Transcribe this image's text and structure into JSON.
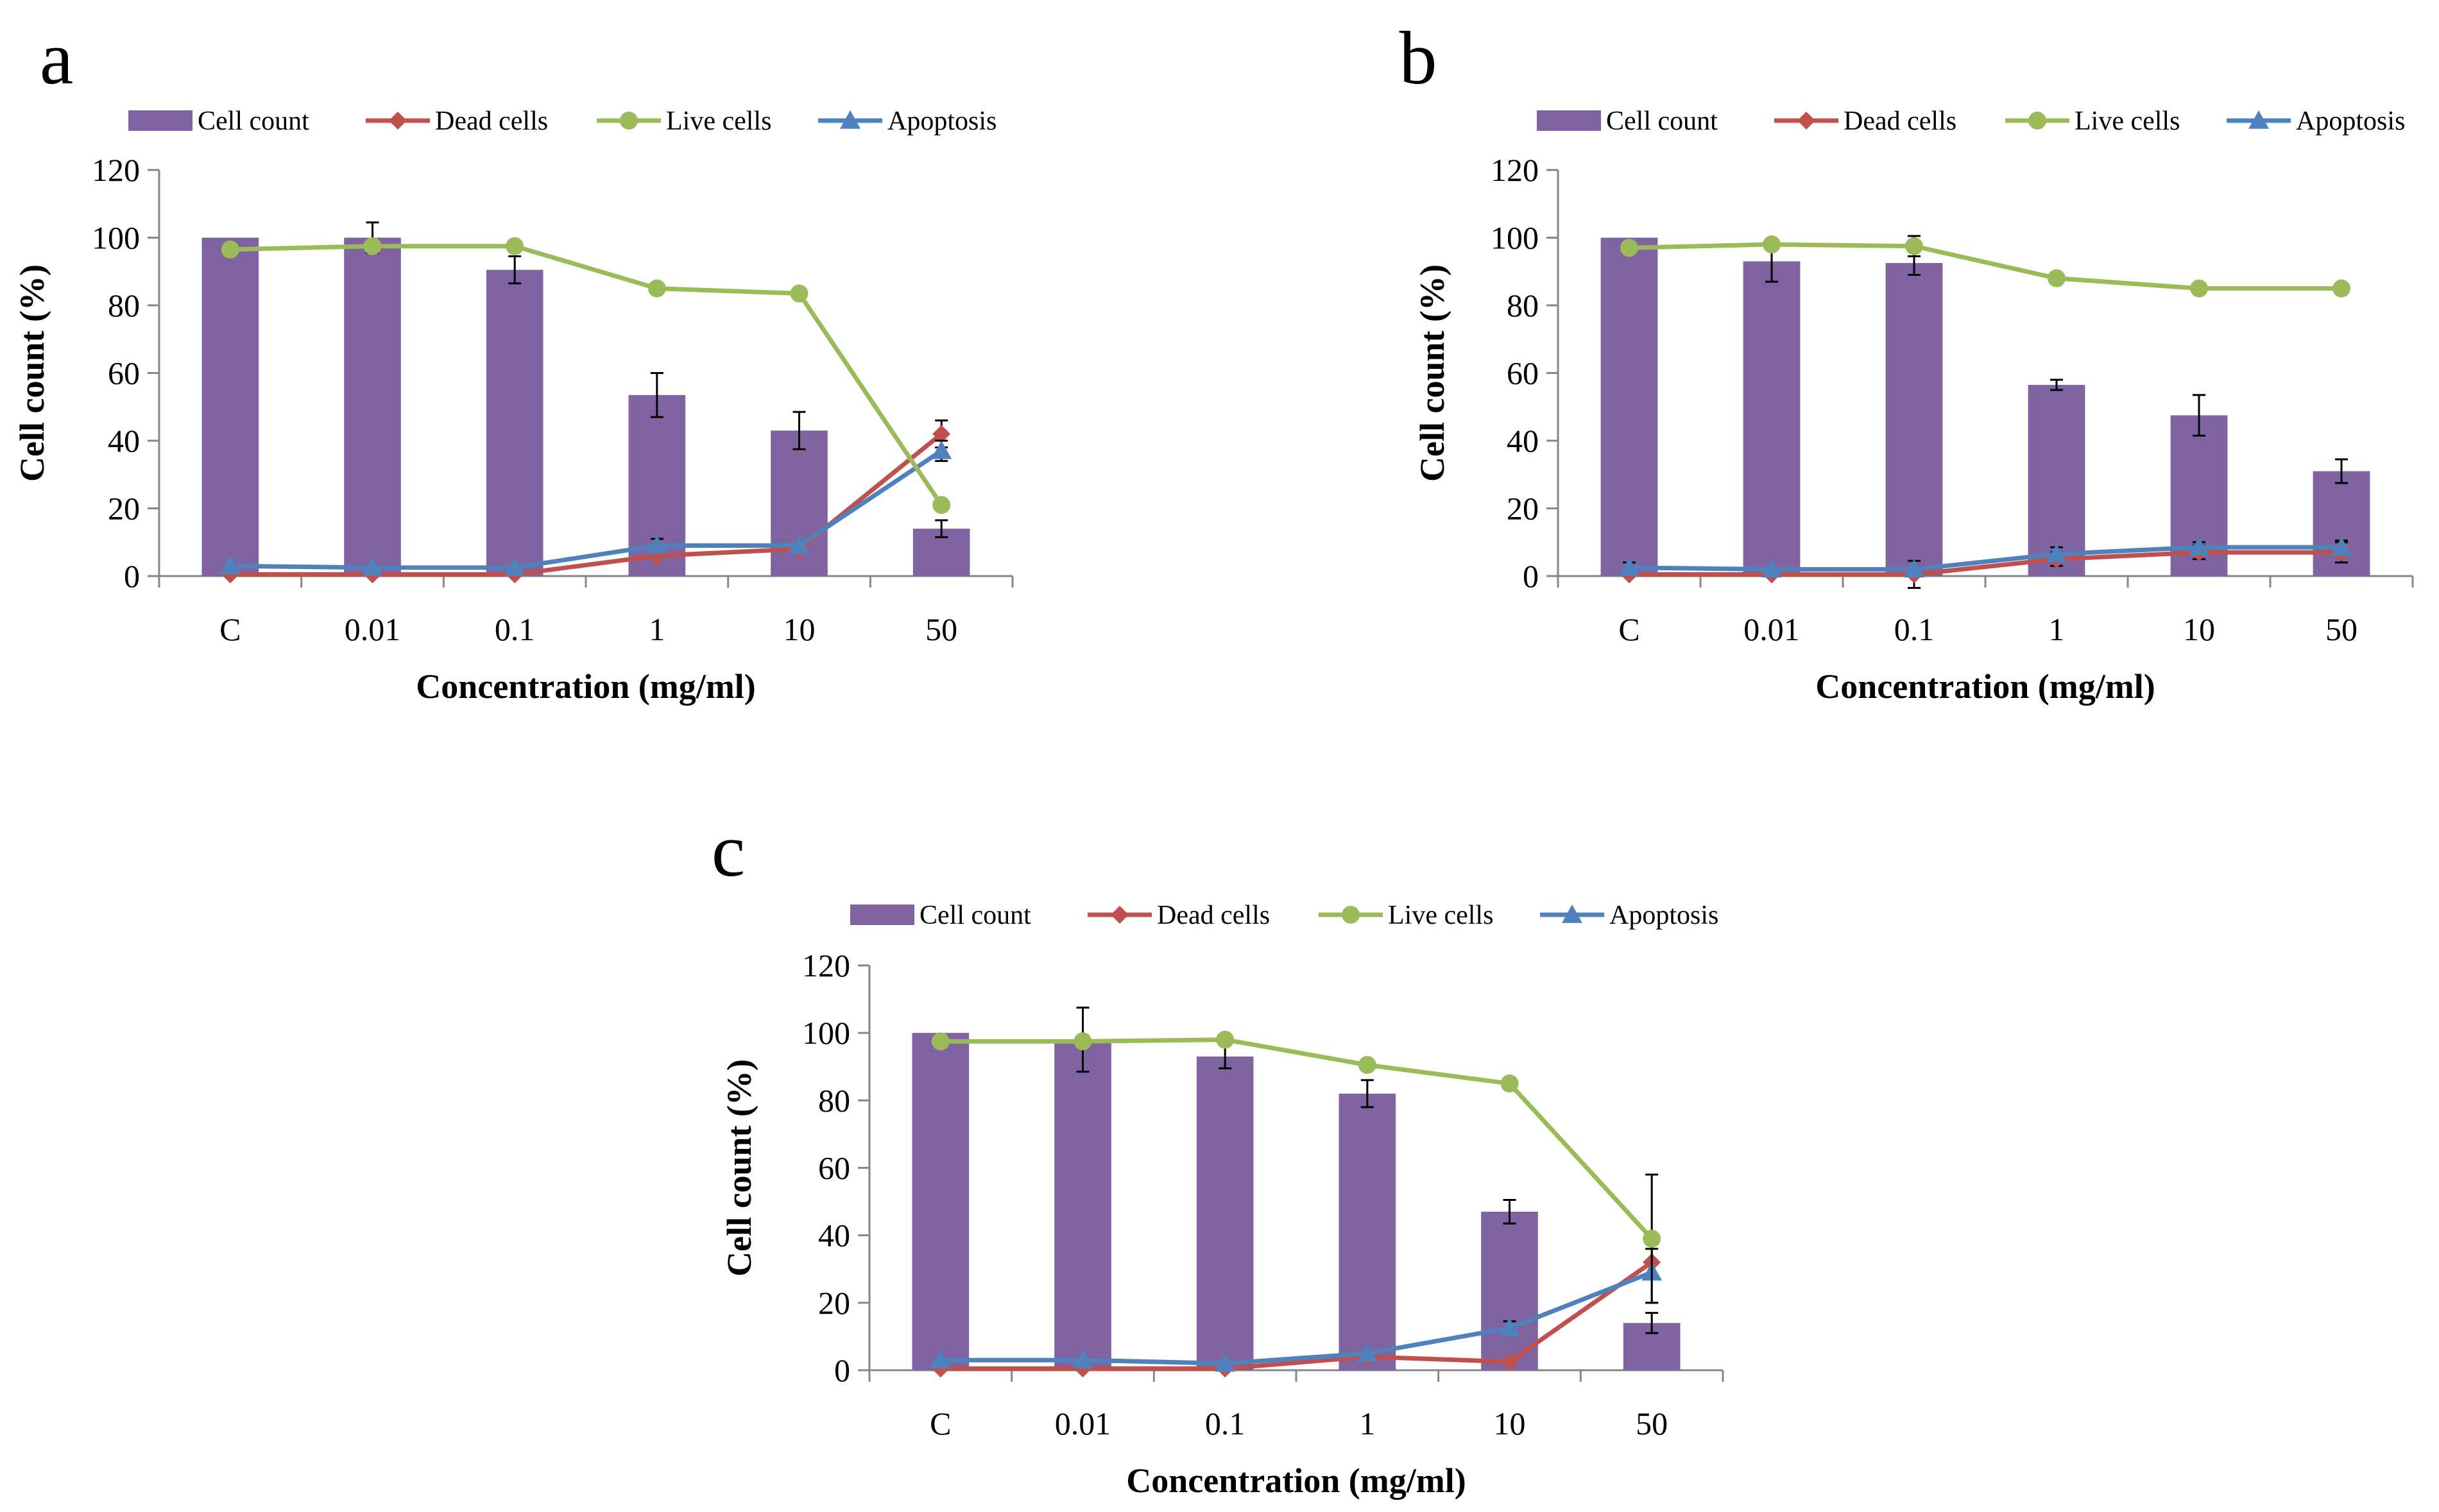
{
  "colors": {
    "cell_count": "#8064A2",
    "dead_cells": "#C0504D",
    "live_cells": "#9BBB59",
    "apoptosis": "#4F81BD",
    "axis": "#868686",
    "text": "#000000"
  },
  "chart_data": [
    {
      "panel": "a",
      "type": "bar",
      "ylabel": "Cell count (%)",
      "xlabel": "Concentration (mg/ml)",
      "ylim": [
        0,
        120
      ],
      "yticks": [
        "0",
        "20",
        "40",
        "60",
        "80",
        "100",
        "120"
      ],
      "categories": [
        "C",
        "0.01",
        "0.1",
        "1",
        "10",
        "50"
      ],
      "legend": [
        "Cell count",
        "Dead cells",
        "Live cells",
        "Apoptosis"
      ],
      "series": [
        {
          "name": "Cell count",
          "type": "bar",
          "values": [
            100,
            100,
            90.5,
            53.5,
            43,
            14
          ],
          "errors": [
            0.3,
            4.5,
            4,
            6.5,
            5.5,
            2.5
          ]
        },
        {
          "name": "Dead cells",
          "type": "line",
          "marker": "diamond",
          "values": [
            0.5,
            0.5,
            0.5,
            6,
            8,
            42
          ],
          "errors": [
            0,
            0,
            0,
            0,
            0,
            4
          ]
        },
        {
          "name": "Live cells",
          "type": "line",
          "marker": "circle",
          "values": [
            96.5,
            97.5,
            97.5,
            85,
            83.5,
            21
          ],
          "errors": [
            0,
            0,
            0,
            1,
            1,
            0
          ]
        },
        {
          "name": "Apoptosis",
          "type": "line",
          "marker": "triangle",
          "values": [
            3,
            2.5,
            2.5,
            9,
            9,
            37
          ],
          "errors": [
            0,
            0,
            0,
            2,
            0,
            3
          ]
        }
      ]
    },
    {
      "panel": "b",
      "type": "bar",
      "ylabel": "Cell count (%)",
      "xlabel": "Concentration (mg/ml)",
      "ylim": [
        0,
        120
      ],
      "yticks": [
        "0",
        "20",
        "40",
        "60",
        "80",
        "100",
        "120"
      ],
      "categories": [
        "C",
        "0.01",
        "0.1",
        "1",
        "10",
        "50"
      ],
      "legend": [
        "Cell count",
        "Dead cells",
        "Live cells",
        "Apoptosis"
      ],
      "series": [
        {
          "name": "Cell count",
          "type": "bar",
          "values": [
            100,
            93,
            92.5,
            56.5,
            47.5,
            31
          ],
          "errors": [
            0.3,
            6,
            3.5,
            1.5,
            6,
            3.5
          ]
        },
        {
          "name": "Dead cells",
          "type": "line",
          "marker": "diamond",
          "values": [
            0.5,
            0.5,
            0.5,
            5,
            7,
            7
          ],
          "errors": [
            0,
            0,
            4,
            2,
            2,
            3
          ]
        },
        {
          "name": "Live cells",
          "type": "line",
          "marker": "circle",
          "values": [
            97,
            98,
            97.5,
            88,
            85,
            85
          ],
          "errors": [
            0,
            0,
            3,
            0,
            0,
            0
          ]
        },
        {
          "name": "Apoptosis",
          "type": "line",
          "marker": "triangle",
          "values": [
            2.5,
            2,
            2,
            6.5,
            8.5,
            8.5
          ],
          "errors": [
            1.5,
            0,
            0,
            2,
            1.5,
            2
          ]
        }
      ]
    },
    {
      "panel": "c",
      "type": "bar",
      "ylabel": "Cell count (%)",
      "xlabel": "Concentration (mg/ml)",
      "ylim": [
        0,
        120
      ],
      "yticks": [
        "0",
        "20",
        "40",
        "60",
        "80",
        "100",
        "120"
      ],
      "categories": [
        "C",
        "0.01",
        "0.1",
        "1",
        "10",
        "50"
      ],
      "legend": [
        "Cell count",
        "Dead cells",
        "Live cells",
        "Apoptosis"
      ],
      "series": [
        {
          "name": "Cell count",
          "type": "bar",
          "values": [
            100,
            98,
            93,
            82,
            47,
            14
          ],
          "errors": [
            0.3,
            9.5,
            3.5,
            4,
            3.5,
            3
          ]
        },
        {
          "name": "Dead cells",
          "type": "line",
          "marker": "diamond",
          "values": [
            0.5,
            0.5,
            0.5,
            4,
            2.5,
            32
          ],
          "errors": [
            0,
            0,
            0,
            0,
            0,
            4
          ]
        },
        {
          "name": "Live cells",
          "type": "line",
          "marker": "circle",
          "values": [
            97.5,
            97.5,
            98,
            90.5,
            85,
            39
          ],
          "errors": [
            0,
            0,
            0,
            0,
            0,
            19
          ]
        },
        {
          "name": "Apoptosis",
          "type": "line",
          "marker": "triangle",
          "values": [
            3,
            3,
            2,
            5,
            12.5,
            29
          ],
          "errors": [
            0,
            0,
            0,
            0,
            2,
            9
          ]
        }
      ]
    }
  ]
}
